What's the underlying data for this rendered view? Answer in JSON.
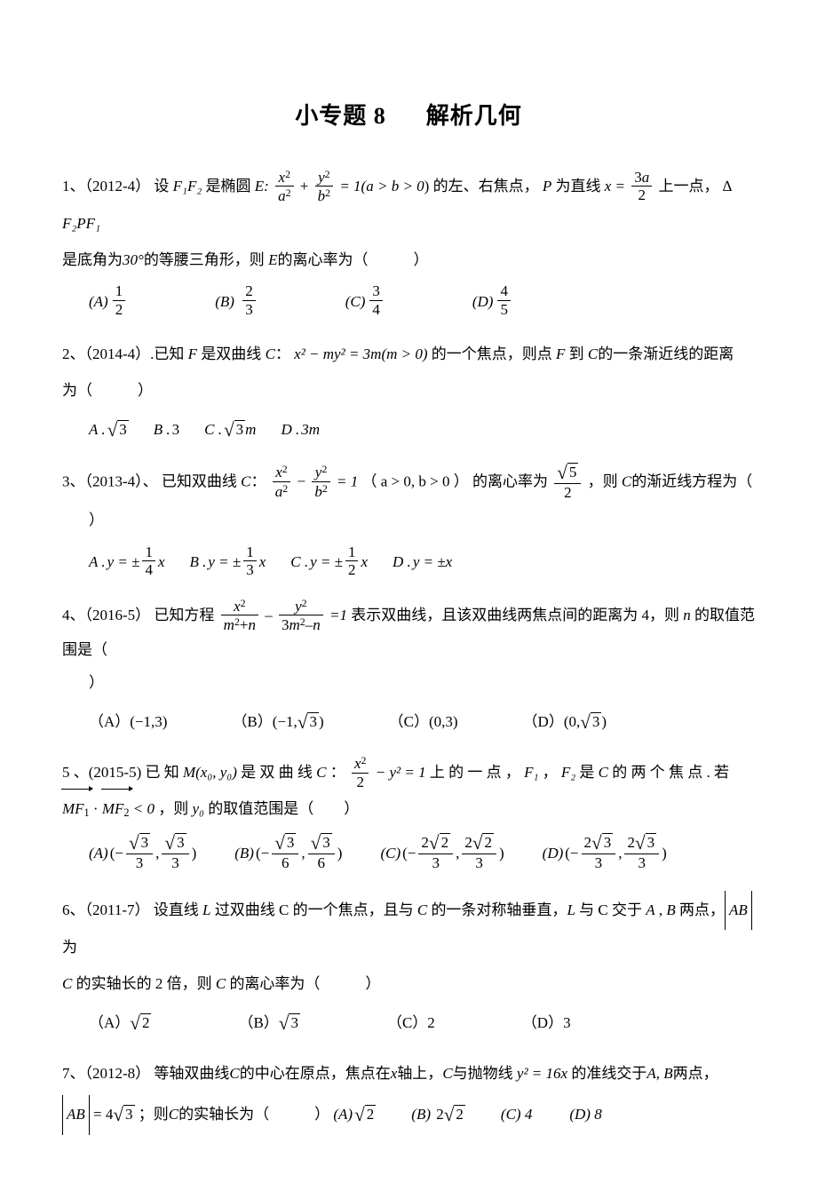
{
  "title_left": "小专题 8",
  "title_right": "解析几何",
  "problems": {
    "p1": {
      "number": "1、",
      "year": "（2012-4）",
      "text_a": "设",
      "f1f2": "F₁F₂",
      "text_b": "是椭圆",
      "E": "E",
      "colon": ":",
      "eq_mid": "= 1(",
      "cond": "a > b > 0",
      "text_c": ") 的左、右焦点，",
      "P": "P",
      "text_d": " 为直线",
      "xeq": "x =",
      "text_e": "上一点，",
      "tri": "∆ F₂PF₁",
      "text_f": "是底角为",
      "deg": "30°",
      "text_g": "的等腰三角形，则",
      "E2": "E",
      "text_h": "的离心率为（　　　）",
      "opts": {
        "A": "(A)",
        "B": "(B)",
        "C": "(C)",
        "D": "(D)"
      }
    },
    "p2": {
      "number": "2、",
      "year": "（2014-4）",
      "text_a": ".已知",
      "F": "F",
      "text_b": " 是双曲线",
      "C": "C",
      "colon": "：",
      "eq": "x² − my² = 3m(m > 0)",
      "text_c": "的一个焦点，则点",
      "F2": "F",
      "text_d": " 到",
      "C2": "C",
      "text_e": "的一条渐近线的距离",
      "line2": "为（　　　）",
      "opts": {
        "A": "A .",
        "Aval": "√3",
        "B": "B .",
        "Bval": "3",
        "C": "C .",
        "Cval": "√3m",
        "D": "D .",
        "Dval": "3m"
      }
    },
    "p3": {
      "number": "3、",
      "year": "（2013-4）、",
      "text_a": "已知双曲线",
      "C": "C",
      "colon": "：",
      "eq_mid": "= 1",
      "cond": "（ a > 0, b > 0 ）",
      "text_b": "的离心率为",
      "text_c": "，则",
      "C2": "C",
      "text_d": "的渐近线方程为（",
      "close": "）",
      "opts": {
        "A": "A .",
        "B": "B .",
        "C": "C .",
        "D": "D .",
        "y_eq": "y = ±",
        "y_eq_d": "y = ±x"
      }
    },
    "p4": {
      "number": "4、",
      "year": "（2016-5）",
      "text_a": "已知方程",
      "eq_mid": "=1",
      "text_b": " 表示双曲线，且该双曲线两焦点间的距离为 4，则 ",
      "n": "n",
      "text_c": " 的取值范围是（",
      "close": "）",
      "opts": {
        "A": "（A）(−1,3)",
        "B": "（B）(−1,√3)",
        "C": "（C）(0,3)",
        "D": "（D）(0,√3)"
      }
    },
    "p5": {
      "number": "5 、",
      "year": "(2015-5)",
      "text_a": " 已 知 ",
      "M": "M(x₀, y₀)",
      "text_b": " 是 双 曲 线 ",
      "C": "C",
      "colon": " ： ",
      "eq_mid": "− y² = 1",
      "text_c": " 上 的 一 点 ， ",
      "F1": "F₁",
      "F2": "F₂",
      "text_d": " 是 ",
      "C2": "C",
      "text_e": " 的 两 个 焦 点 . 若",
      "line2_a": " ，则 ",
      "y0": "y₀",
      "line2_b": "的取值范围是（　　）",
      "lt0": "< 0",
      "opts": {
        "A": "(A)",
        "B": "(B)",
        "C": "(C)",
        "D": "(D)"
      }
    },
    "p6": {
      "number": "6、",
      "year": "（2011-7）",
      "text_a": "设直线 ",
      "L": "L",
      "text_b": " 过双曲线 C 的一个焦点，且与 ",
      "C": "C",
      "text_c": " 的一条对称轴垂直，",
      "L2": "L",
      "text_d": " 与 C 交于 ",
      "A": "A",
      "comma": " , ",
      "B": "B",
      "text_e": " 两点，",
      "AB": "AB",
      "text_f": " 为",
      "line2_a": "C",
      "line2_b": " 的实轴长的 2 倍，则 ",
      "line2_c": "C",
      "line2_d": " 的离心率为（　　　）",
      "opts": {
        "A": "（A）",
        "B": "（B）",
        "C": "（C）2",
        "D": "（D）3"
      }
    },
    "p7": {
      "number": "7、",
      "year": "（2012-8）",
      "text_a": "等轴双曲线",
      "C": "C",
      "text_b": "的中心在原点，焦点在",
      "x": "x",
      "text_c": "轴上，",
      "C2": "C",
      "text_d": "与抛物线",
      "eq": "y² = 16x",
      "text_e": "的准线交于",
      "A": "A",
      "comma2": ", ",
      "B": "B",
      "text_f": "两点，",
      "line2_a": "= 4√3",
      "line2_b": " ；则",
      "C3": "C",
      "line2_c": "的实轴长为（　　　）",
      "opts": {
        "A": "(A)",
        "B": "(B)",
        "C": "(C) 4",
        "D": "(D) 8"
      }
    }
  }
}
